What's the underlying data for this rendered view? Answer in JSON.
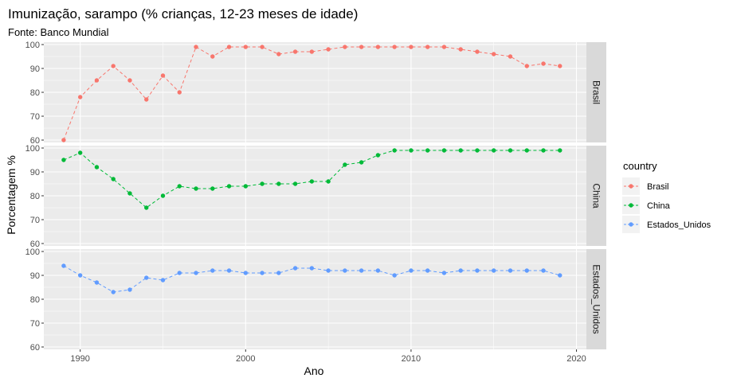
{
  "chart_data": {
    "type": "line",
    "title": "Imunização, sarampo (% crianças, 12-23 meses de idade)",
    "subtitle": "Fonte: Banco Mundial",
    "xlabel": "Ano",
    "ylabel": "Porcentagem %",
    "xlim": [
      1987.8,
      2020.6
    ],
    "ylim": [
      59,
      101
    ],
    "x_ticks": [
      1990,
      2000,
      2010,
      2020
    ],
    "y_ticks": [
      60,
      70,
      80,
      90,
      100
    ],
    "grid": true,
    "legend_position": "right",
    "legend_title": "country",
    "x": [
      1989,
      1990,
      1991,
      1992,
      1993,
      1994,
      1995,
      1996,
      1997,
      1998,
      1999,
      2000,
      2001,
      2002,
      2003,
      2004,
      2005,
      2006,
      2007,
      2008,
      2009,
      2010,
      2011,
      2012,
      2013,
      2014,
      2015,
      2016,
      2017,
      2018,
      2019
    ],
    "series": [
      {
        "name": "Brasil",
        "color": "#F8766D",
        "values": [
          60,
          78,
          85,
          91,
          85,
          77,
          87,
          80,
          99,
          95,
          99,
          99,
          99,
          96,
          97,
          97,
          98,
          99,
          99,
          99,
          99,
          99,
          99,
          99,
          98,
          97,
          96,
          95,
          91,
          92,
          91
        ]
      },
      {
        "name": "China",
        "color": "#00BA38",
        "values": [
          95,
          98,
          92,
          87,
          81,
          75,
          80,
          84,
          83,
          83,
          84,
          84,
          85,
          85,
          85,
          86,
          86,
          93,
          94,
          97,
          99,
          99,
          99,
          99,
          99,
          99,
          99,
          99,
          99,
          99,
          99
        ]
      },
      {
        "name": "Estados_Unidos",
        "color": "#619CFF",
        "values": [
          94,
          90,
          87,
          83,
          84,
          89,
          88,
          91,
          91,
          92,
          92,
          91,
          91,
          91,
          93,
          93,
          92,
          92,
          92,
          92,
          90,
          92,
          92,
          91,
          92,
          92,
          92,
          92,
          92,
          92,
          90
        ]
      }
    ]
  }
}
